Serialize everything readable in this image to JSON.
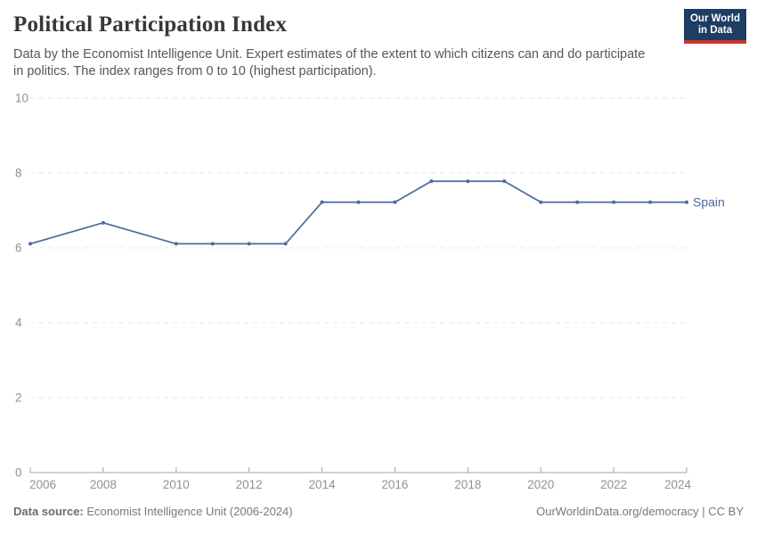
{
  "header": {
    "title": "Political Participation Index",
    "subtitle_lines": [
      "Data by the Economist Intelligence Unit. Expert estimates of the extent to which citizens can and do participate",
      "in politics. The index ranges from 0 to 10 (highest participation)."
    ],
    "logo_lines": [
      "Our World",
      "in Data"
    ]
  },
  "chart_data": {
    "type": "line",
    "title": "Political Participation Index",
    "x": [
      2006,
      2008,
      2010,
      2011,
      2012,
      2013,
      2014,
      2015,
      2016,
      2017,
      2018,
      2019,
      2020,
      2021,
      2022,
      2023,
      2024
    ],
    "series": [
      {
        "name": "Spain",
        "values": [
          6.11,
          6.67,
          6.11,
          6.11,
          6.11,
          6.11,
          7.22,
          7.22,
          7.22,
          7.78,
          7.78,
          7.78,
          7.22,
          7.22,
          7.22,
          7.22,
          7.22
        ]
      }
    ],
    "xlim": [
      2006,
      2024
    ],
    "ylim": [
      0,
      10
    ],
    "xticks": [
      2006,
      2008,
      2010,
      2012,
      2014,
      2016,
      2018,
      2020,
      2022,
      2024
    ],
    "yticks": [
      0,
      2,
      4,
      6,
      8,
      10
    ],
    "grid": "horizontal-dashed",
    "legend_position": "end-of-line"
  },
  "colors": {
    "line": "#4c6a9e",
    "grid": "#e7e7e7",
    "axis": "#a5a5a5",
    "tick_label": "#919191",
    "logo_navy": "#1d3d63",
    "logo_red": "#d0342c"
  },
  "footer": {
    "source_label": "Data source:",
    "source_value": "Economist Intelligence Unit (2006-2024)",
    "credit": "OurWorldinData.org/democracy | CC BY"
  }
}
